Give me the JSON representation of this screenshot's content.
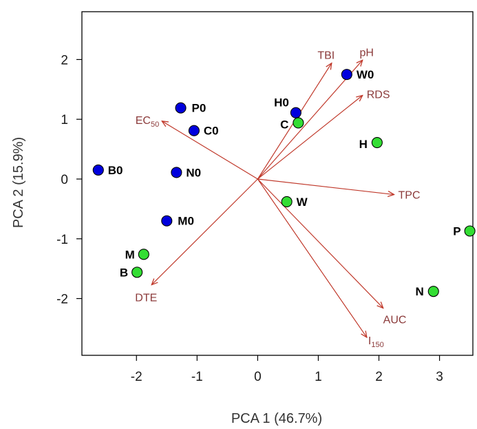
{
  "chart_data": {
    "type": "scatter",
    "xlabel": "PCA 1 (46.7%)",
    "ylabel": "PCA 2 (15.9%)",
    "xlim": [
      -2.9,
      3.55
    ],
    "ylim": [
      -2.95,
      2.8
    ],
    "xticks": [
      "-2",
      "-1",
      "0",
      "1",
      "2",
      "3"
    ],
    "yticks": [
      "2",
      "1",
      "0",
      "-1",
      "-2"
    ],
    "grid": false,
    "colors": {
      "series_blue": "#0000dd",
      "series_green": "#33dd33",
      "vectors": "#c0392b",
      "vector_labels": "#8b3a3a"
    },
    "series": [
      {
        "points": [
          {
            "x": -2.63,
            "y": 0.15,
            "label": "B0"
          },
          {
            "x": -1.27,
            "y": 1.19,
            "label": "P0"
          },
          {
            "x": -1.05,
            "y": 0.81,
            "label": "C0"
          },
          {
            "x": -1.34,
            "y": 0.11,
            "label": "N0"
          },
          {
            "x": -1.5,
            "y": -0.7,
            "label": "M0"
          },
          {
            "x": 1.47,
            "y": 1.75,
            "label": "W0"
          },
          {
            "x": 0.63,
            "y": 1.11,
            "label": "H0"
          }
        ]
      },
      {
        "points": [
          {
            "x": 0.67,
            "y": 0.94,
            "label": "C"
          },
          {
            "x": 1.97,
            "y": 0.61,
            "label": "H"
          },
          {
            "x": 0.48,
            "y": -0.38,
            "label": "W"
          },
          {
            "x": 3.5,
            "y": -0.87,
            "label": "P"
          },
          {
            "x": 2.9,
            "y": -1.88,
            "label": "N"
          },
          {
            "x": -1.88,
            "y": -1.26,
            "label": "M"
          },
          {
            "x": -1.99,
            "y": -1.56,
            "label": "B"
          }
        ]
      }
    ],
    "vectors": [
      {
        "name": "TBI",
        "sub": "",
        "x": 1.22,
        "y": 1.94
      },
      {
        "name": "pH",
        "sub": "",
        "x": 1.73,
        "y": 1.99
      },
      {
        "name": "RDS",
        "sub": "",
        "x": 1.73,
        "y": 1.4
      },
      {
        "name": "TPC",
        "sub": "",
        "x": 2.25,
        "y": -0.26
      },
      {
        "name": "AUC",
        "sub": "",
        "x": 2.07,
        "y": -2.16
      },
      {
        "name": "I",
        "sub": "150",
        "x": 1.8,
        "y": -2.65
      },
      {
        "name": "DTE",
        "sub": "",
        "x": -1.75,
        "y": -1.77
      },
      {
        "name": "EC",
        "sub": "50",
        "x": -1.58,
        "y": 0.97
      }
    ]
  }
}
